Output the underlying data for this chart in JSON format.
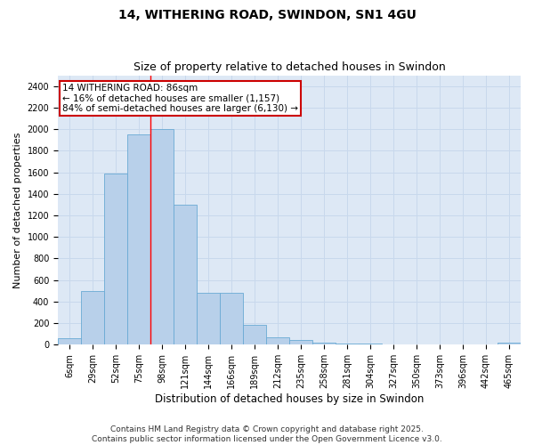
{
  "title_line1": "14, WITHERING ROAD, SWINDON, SN1 4GU",
  "title_line2": "Size of property relative to detached houses in Swindon",
  "xlabel": "Distribution of detached houses by size in Swindon",
  "ylabel": "Number of detached properties",
  "categories": [
    "6sqm",
    "29sqm",
    "52sqm",
    "75sqm",
    "98sqm",
    "121sqm",
    "144sqm",
    "166sqm",
    "189sqm",
    "212sqm",
    "235sqm",
    "258sqm",
    "281sqm",
    "304sqm",
    "327sqm",
    "350sqm",
    "373sqm",
    "396sqm",
    "442sqm",
    "465sqm"
  ],
  "values": [
    60,
    500,
    1590,
    1950,
    2000,
    1300,
    480,
    480,
    185,
    65,
    45,
    20,
    10,
    8,
    3,
    0,
    0,
    0,
    0,
    18
  ],
  "bar_color": "#b8d0ea",
  "bar_edge_color": "#6aaad4",
  "grid_color": "#c8d8ec",
  "bg_color": "#dde8f5",
  "red_line_x": 4.0,
  "annotation_text": "14 WITHERING ROAD: 86sqm\n← 16% of detached houses are smaller (1,157)\n84% of semi-detached houses are larger (6,130) →",
  "annotation_box_color": "#cc0000",
  "ylim": [
    0,
    2500
  ],
  "yticks": [
    0,
    200,
    400,
    600,
    800,
    1000,
    1200,
    1400,
    1600,
    1800,
    2000,
    2200,
    2400
  ],
  "footer_line1": "Contains HM Land Registry data © Crown copyright and database right 2025.",
  "footer_line2": "Contains public sector information licensed under the Open Government Licence v3.0.",
  "title_fontsize": 10,
  "subtitle_fontsize": 9,
  "axis_label_fontsize": 8,
  "tick_fontsize": 7,
  "annotation_fontsize": 7.5,
  "footer_fontsize": 6.5
}
